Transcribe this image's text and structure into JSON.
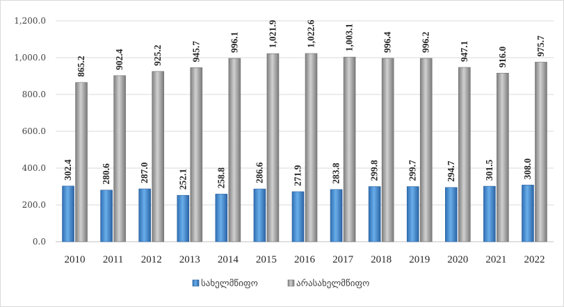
{
  "chart_data": {
    "type": "bar",
    "categories": [
      "2010",
      "2011",
      "2012",
      "2013",
      "2014",
      "2015",
      "2016",
      "2017",
      "2018",
      "2019",
      "2020",
      "2021",
      "2022"
    ],
    "series": [
      {
        "name": "სახელმწიფო",
        "color": "#4a8fd4",
        "values": [
          302.4,
          280.6,
          287.0,
          252.1,
          258.8,
          286.6,
          271.9,
          283.8,
          299.8,
          299.7,
          294.7,
          301.5,
          308.0
        ],
        "labels": [
          "302.4",
          "280.6",
          "287.0",
          "252.1",
          "258.8",
          "286.6",
          "271.9",
          "283.8",
          "299.8",
          "299.7",
          "294.7",
          "301.5",
          "308.0"
        ]
      },
      {
        "name": "არასახელმწიფო",
        "color": "#a6a6a6",
        "values": [
          865.2,
          902.4,
          925.2,
          945.7,
          996.1,
          1021.9,
          1022.6,
          1003.1,
          996.4,
          996.2,
          947.1,
          916.0,
          975.7
        ],
        "labels": [
          "865.2",
          "902.4",
          "925.2",
          "945.7",
          "996.1",
          "1,021.9",
          "1,022.6",
          "1,003.1",
          "996.4",
          "996.2",
          "947.1",
          "916.0",
          "975.7"
        ]
      }
    ],
    "yticks": [
      "0.0",
      "200.0",
      "400.0",
      "600.0",
      "800.0",
      "1,000.0",
      "1,200.0"
    ],
    "ylim": [
      0,
      1200
    ],
    "grid": true,
    "legend_position": "bottom"
  }
}
